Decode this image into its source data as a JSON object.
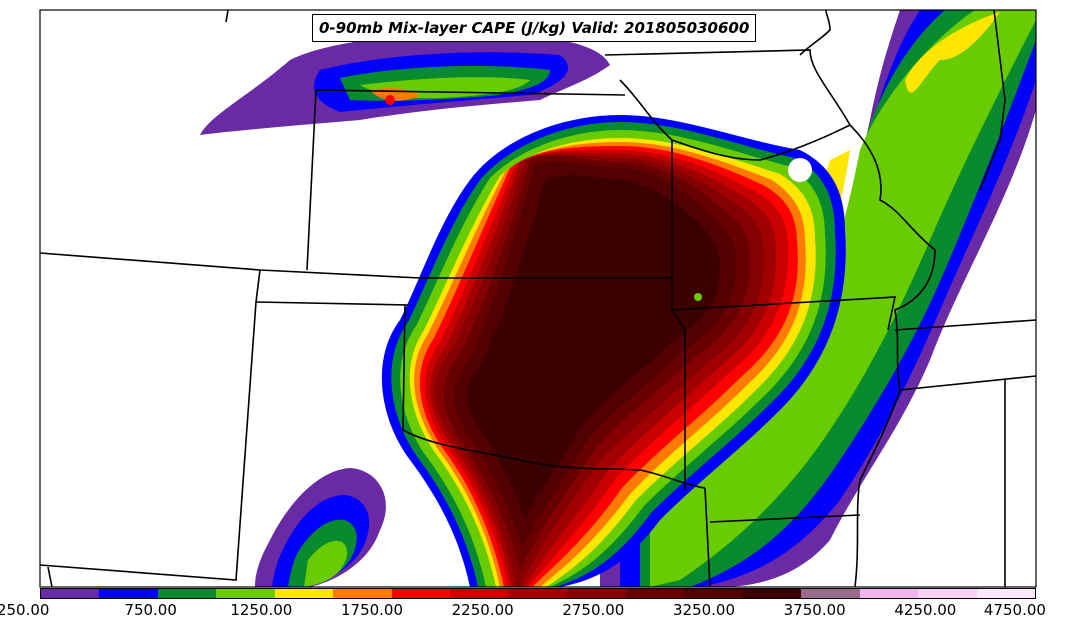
{
  "title": "0-90mb Mix-layer CAPE (J/kg) Valid: 201805030600",
  "colorbar": {
    "colors": [
      "#6a2aa6",
      "#0000ff",
      "#0a8a2e",
      "#68cc00",
      "#ffe600",
      "#ff7a00",
      "#ff0000",
      "#c80000",
      "#a00000",
      "#850000",
      "#680000",
      "#520000",
      "#3d0000",
      "#9c6a8c",
      "#f2b6ee",
      "#f8d2f4",
      "#fce8fa"
    ],
    "tick_labels": [
      "250.00",
      "750.00",
      "1250.00",
      "1750.00",
      "2250.00",
      "2750.00",
      "3250.00",
      "3750.00",
      "4250.00",
      "4750.00"
    ]
  }
}
